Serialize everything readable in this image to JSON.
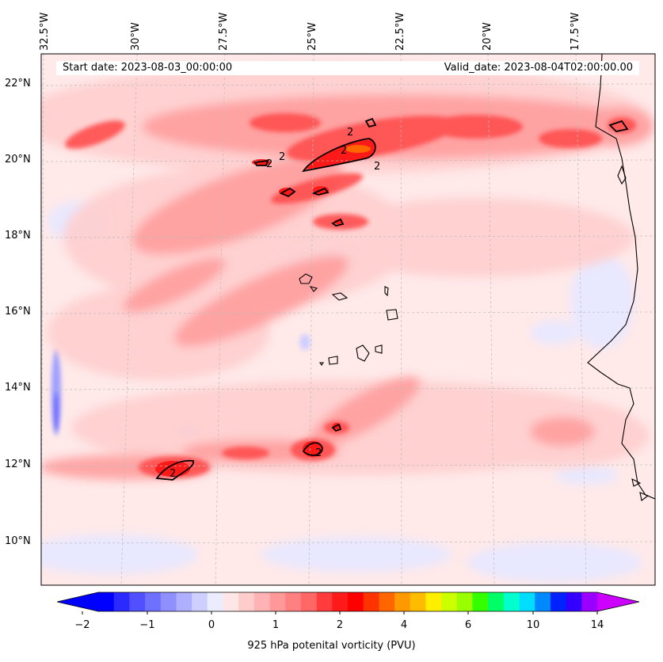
{
  "header": {
    "start_date": "Start date: 2023-08-03_00:00:00",
    "valid_date": "Valid_date: 2023-08-04T02:00:00.00"
  },
  "map": {
    "longitude_labels": [
      "32.5°W",
      "30°W",
      "27.5°W",
      "25°W",
      "22.5°W",
      "20°W",
      "17.5°W"
    ],
    "latitude_labels": [
      "22°N",
      "20°N",
      "18°N",
      "16°N",
      "14°N",
      "12°N",
      "10°N"
    ],
    "contour_label": "2",
    "contour_level_pvu": 2
  },
  "colorbar": {
    "title": "925 hPa potenital vorticity (PVU)",
    "tick_labels": [
      "−2",
      "−1",
      "0",
      "1",
      "2",
      "4",
      "6",
      "10",
      "14"
    ],
    "colors": [
      "#0000ff",
      "#2a2aff",
      "#5050ff",
      "#7070ff",
      "#8f8fff",
      "#afafff",
      "#cfcfff",
      "#ececff",
      "#ffe6e6",
      "#ffcccc",
      "#ffb3b3",
      "#ff9999",
      "#ff8080",
      "#ff6666",
      "#ff3b3b",
      "#ff1a1a",
      "#ff0000",
      "#ff3300",
      "#ff6600",
      "#ff9900",
      "#ffbb00",
      "#ffee00",
      "#ccff00",
      "#99ff00",
      "#33ff00",
      "#00ff66",
      "#00ffcc",
      "#00ddff",
      "#0088ff",
      "#0022ff",
      "#3300ff",
      "#9900ff"
    ],
    "under_color": "#0000ff",
    "over_color": "#cc00ff"
  }
}
